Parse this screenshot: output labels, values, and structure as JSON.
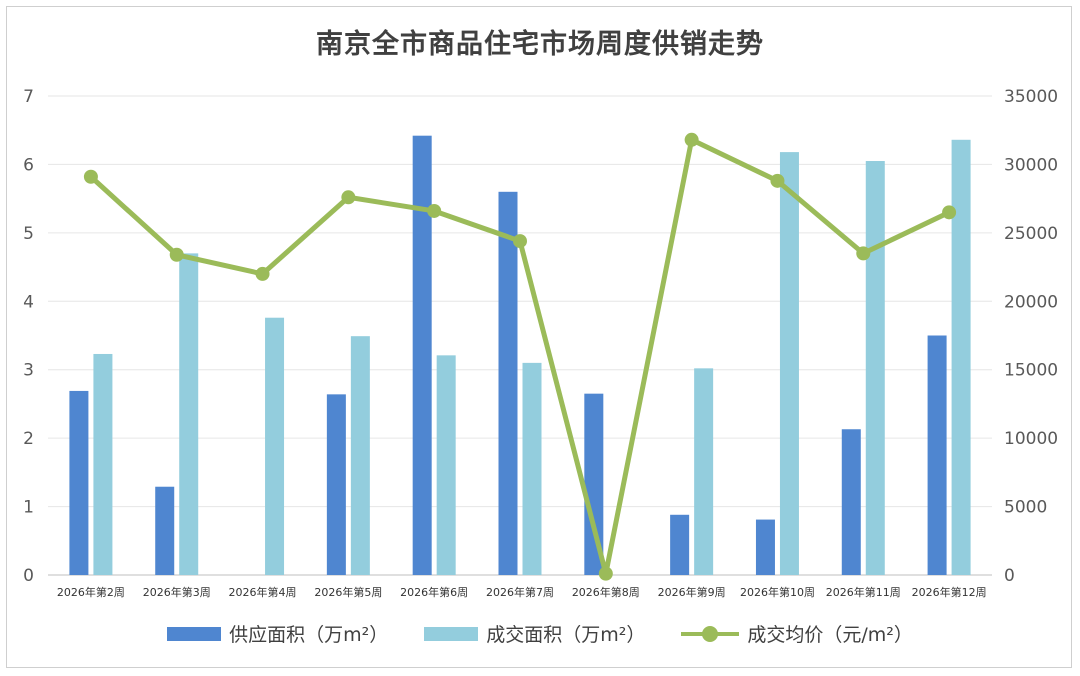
{
  "chart_data": {
    "type": "bar",
    "title": "南京全市商品住宅市场周度供销走势",
    "categories": [
      "2026年第2周",
      "2026年第3周",
      "2026年第4周",
      "2026年第5周",
      "2026年第6周",
      "2026年第7周",
      "2026年第8周",
      "2026年第9周",
      "2026年第10周",
      "2026年第11周",
      "2026年第12周"
    ],
    "series": [
      {
        "name": "供应面积（万m²）",
        "type": "bar",
        "axis": "left",
        "color": "#4f86d0",
        "values": [
          2.69,
          1.29,
          0,
          2.64,
          6.42,
          5.6,
          2.65,
          0.88,
          0.81,
          2.13,
          3.5
        ]
      },
      {
        "name": "成交面积（万m²）",
        "type": "bar",
        "axis": "left",
        "color": "#93cddd",
        "values": [
          3.23,
          4.7,
          3.76,
          3.49,
          3.21,
          3.1,
          0,
          3.02,
          6.18,
          6.05,
          6.36
        ]
      },
      {
        "name": "成交均价（元/m²）",
        "type": "line",
        "axis": "right",
        "color": "#9bbb59",
        "values": [
          29100,
          23400,
          22000,
          27600,
          26600,
          24400,
          100,
          31800,
          28800,
          23500,
          26500
        ]
      }
    ],
    "y_left": {
      "min": 0,
      "max": 7,
      "ticks": [
        0,
        1,
        2,
        3,
        4,
        5,
        6,
        7
      ]
    },
    "y_right": {
      "min": 0,
      "max": 35000,
      "ticks": [
        0,
        5000,
        10000,
        15000,
        20000,
        25000,
        30000,
        35000
      ]
    },
    "grid": true,
    "legend_position": "bottom"
  }
}
